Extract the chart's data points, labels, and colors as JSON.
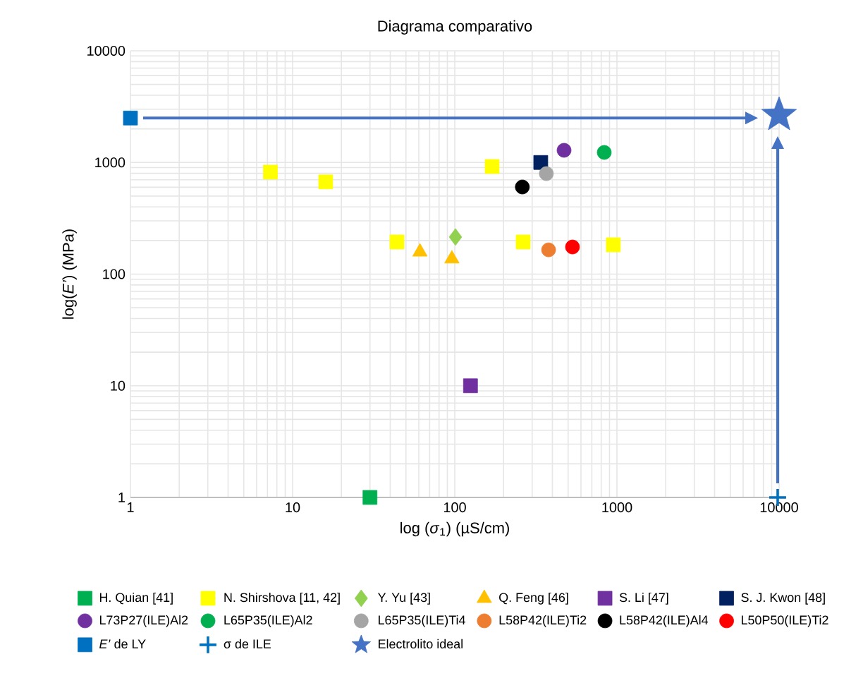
{
  "chart_data": {
    "type": "scatter",
    "title": "Diagrama comparativo",
    "xlabel": "log (*σ*$_{1}$) (µS/cm)",
    "ylabel": "log(*E’*) (MPa)",
    "log": "xy",
    "grid": true,
    "legend": "bottom",
    "xlim": [
      1,
      10000
    ],
    "ylim": [
      1,
      10000
    ],
    "xticks": [
      1,
      10,
      100,
      1000,
      10000
    ],
    "yticks": [
      1,
      10,
      100,
      1000,
      10000
    ],
    "series": [
      {
        "name": "H. Quian [41]",
        "color": "#00b050",
        "marker": "square",
        "x": [
          30
        ],
        "values": [
          1
        ]
      },
      {
        "name": "N. Shirshova [11, 42]",
        "color": "#ffff00",
        "marker": "square",
        "x": [
          7.3,
          16,
          44,
          170,
          264,
          950
        ],
        "values": [
          820,
          670,
          194,
          920,
          194,
          183
        ]
      },
      {
        "name": "Y. Yu [43]",
        "color": "#92d050",
        "marker": "diamond",
        "x": [
          101
        ],
        "values": [
          215
        ]
      },
      {
        "name": "Q. Feng [46]",
        "color": "#ffc000",
        "marker": "triangle",
        "x": [
          61,
          96
        ],
        "values": [
          158,
          137
        ]
      },
      {
        "name": "S. Li [47]",
        "color": "#7030a0",
        "marker": "square",
        "x": [
          125
        ],
        "values": [
          10
        ]
      },
      {
        "name": "S. J. Kwon [48]",
        "color": "#002060",
        "marker": "square",
        "x": [
          339
        ],
        "values": [
          1000
        ]
      },
      {
        "name": "L73P27(ILE)Al2",
        "color": "#7030a0",
        "marker": "circle",
        "x": [
          472
        ],
        "values": [
          1285
        ]
      },
      {
        "name": "L65P35(ILE)Al2",
        "color": "#00b050",
        "marker": "circle",
        "x": [
          835
        ],
        "values": [
          1230
        ]
      },
      {
        "name": "L65P35(ILE)Ti4",
        "color": "#a5a5a5",
        "marker": "circle",
        "x": [
          367
        ],
        "values": [
          795
        ]
      },
      {
        "name": "L58P42(ILE)Ti2",
        "color": "#ed7d31",
        "marker": "circle",
        "x": [
          379
        ],
        "values": [
          165
        ]
      },
      {
        "name": "L58P42(ILE)Al4",
        "color": "#000000",
        "marker": "circle",
        "x": [
          261
        ],
        "values": [
          603
        ]
      },
      {
        "name": "L50P50(ILE)Ti2",
        "color": "#ff0000",
        "marker": "circle",
        "x": [
          532
        ],
        "values": [
          175
        ]
      },
      {
        "name": "*E’* de LY",
        "color": "#0070c0",
        "marker": "square",
        "x": [
          1
        ],
        "values": [
          2500
        ]
      },
      {
        "name": "σ de ILE",
        "color": "#0070c0",
        "marker": "cross",
        "x": [
          9800
        ],
        "values": [
          1
        ]
      },
      {
        "name": "Electrolito ideal",
        "color": "#4472c4",
        "marker": "star",
        "x": [
          10000
        ],
        "values": [
          2660
        ]
      }
    ]
  }
}
